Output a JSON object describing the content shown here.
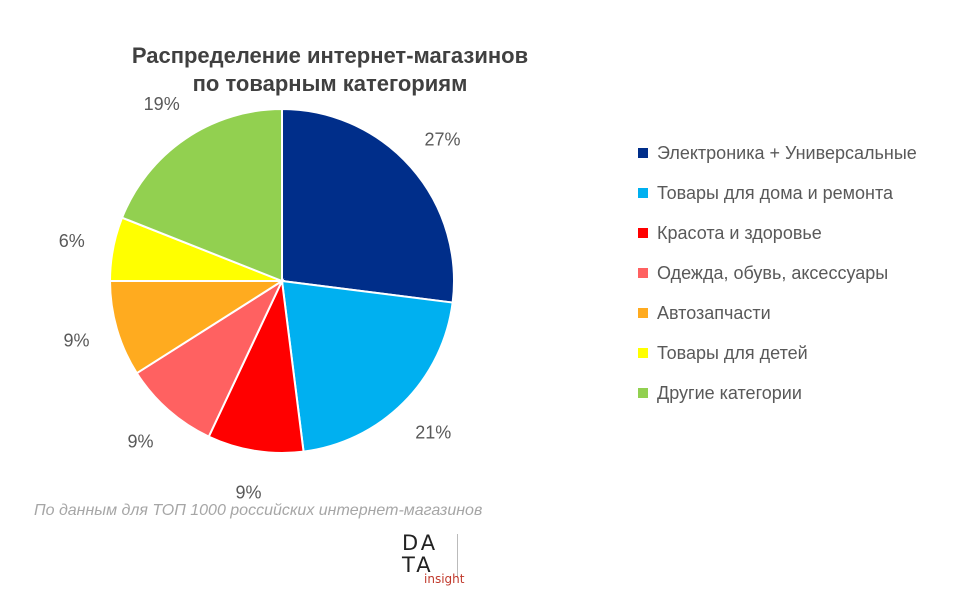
{
  "chart_data": {
    "type": "pie",
    "title_lines": [
      "Распределение интернет-магазинов",
      "по товарным категориям"
    ],
    "slices": [
      {
        "label": "Электроника + Универсальные",
        "value": 27,
        "display": "27%",
        "color": "#002e8a"
      },
      {
        "label": "Товары для дома и ремонта",
        "value": 21,
        "display": "21%",
        "color": "#00b0f0"
      },
      {
        "label": "Красота и здоровье",
        "value": 9,
        "display": "9%",
        "color": "#ff0000"
      },
      {
        "label": "Одежда, обувь, аксессуары",
        "value": 9,
        "display": "9%",
        "color": "#ff6161"
      },
      {
        "label": "Автозапчасти",
        "value": 9,
        "display": "9%",
        "color": "#ffab1f"
      },
      {
        "label": "Товары для детей",
        "value": 6,
        "display": "6%",
        "color": "#ffff00"
      },
      {
        "label": "Другие категории",
        "value": 19,
        "display": "19%",
        "color": "#92d050"
      }
    ],
    "legend_position": "right"
  },
  "source_note": "По данным для ТОП 1000 российских интернет-магазинов",
  "logo": {
    "line1": "DA",
    "line2": "TA",
    "sub": "insight"
  }
}
